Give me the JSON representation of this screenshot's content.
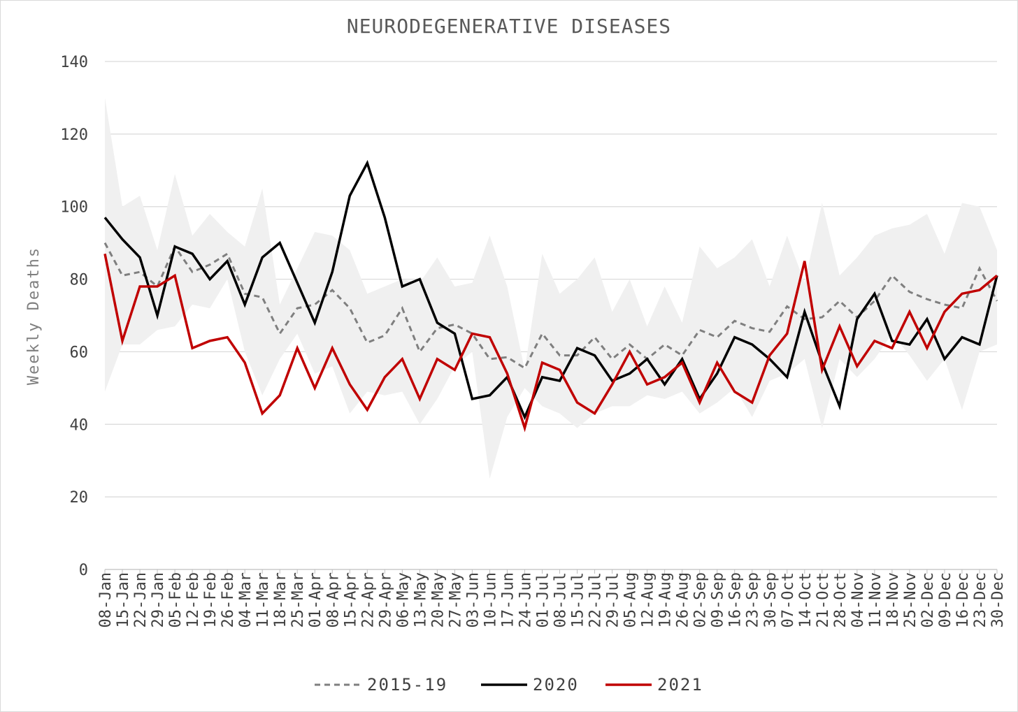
{
  "chart_data": {
    "type": "line",
    "title": "NEURODEGENERATIVE DISEASES",
    "ylabel": "Weekly Deaths",
    "xlabel": "",
    "ylim": [
      0,
      140
    ],
    "yticks": [
      0,
      20,
      40,
      60,
      80,
      100,
      120,
      140
    ],
    "grid": true,
    "legend_position": "bottom",
    "categories": [
      "08-Jan",
      "15-Jan",
      "22-Jan",
      "29-Jan",
      "05-Feb",
      "12-Feb",
      "19-Feb",
      "26-Feb",
      "04-Mar",
      "11-Mar",
      "18-Mar",
      "25-Mar",
      "01-Apr",
      "08-Apr",
      "15-Apr",
      "22-Apr",
      "29-Apr",
      "06-May",
      "13-May",
      "20-May",
      "27-May",
      "03-Jun",
      "10-Jun",
      "17-Jun",
      "24-Jun",
      "01-Jul",
      "08-Jul",
      "15-Jul",
      "22-Jul",
      "29-Jul",
      "05-Aug",
      "12-Aug",
      "19-Aug",
      "26-Aug",
      "02-Sep",
      "09-Sep",
      "16-Sep",
      "23-Sep",
      "30-Sep",
      "07-Oct",
      "14-Oct",
      "21-Oct",
      "28-Oct",
      "04-Nov",
      "11-Nov",
      "18-Nov",
      "25-Nov",
      "02-Dec",
      "09-Dec",
      "16-Dec",
      "23-Dec",
      "30-Dec"
    ],
    "range_band": {
      "color": "#f0f0f0",
      "upper": [
        130,
        100,
        103,
        88,
        109,
        92,
        98,
        93,
        89,
        105,
        73,
        83,
        93,
        92,
        88,
        76,
        78,
        80,
        79,
        86,
        78,
        79,
        92,
        78,
        55,
        87,
        76,
        80,
        86,
        71,
        80,
        67,
        78,
        68,
        89,
        83,
        86,
        91,
        78,
        92,
        79,
        101,
        81,
        86,
        92,
        94,
        95,
        98,
        87,
        101,
        100,
        88
      ],
      "lower": [
        49,
        62,
        62,
        66,
        67,
        73,
        72,
        80,
        60,
        48,
        58,
        65,
        54,
        56,
        43,
        49,
        48,
        49,
        40,
        47,
        56,
        60,
        25,
        42,
        50,
        45,
        43,
        39,
        43,
        45,
        45,
        48,
        47,
        49,
        43,
        46,
        50,
        42,
        52,
        54,
        58,
        39,
        58,
        53,
        58,
        65,
        59,
        52,
        58,
        44,
        60,
        62
      ]
    },
    "series": [
      {
        "name": "2015-19",
        "color": "#7f7f7f",
        "dash": "8,6",
        "width": 3,
        "values": [
          90,
          81,
          82,
          78,
          89,
          82,
          84,
          87,
          76,
          75,
          65,
          72,
          73,
          77,
          72,
          62.5,
          64.5,
          72,
          60,
          66.5,
          67.5,
          65,
          58,
          58.5,
          55.5,
          65,
          59,
          59,
          64,
          58,
          62,
          58,
          62,
          59,
          66,
          64,
          68.5,
          66.5,
          65.5,
          72.5,
          69,
          69.5,
          74,
          69.5,
          74,
          81,
          76.5,
          74.5,
          73,
          72,
          83,
          74
        ]
      },
      {
        "name": "2020",
        "color": "#000000",
        "dash": "",
        "width": 3.5,
        "values": [
          97,
          91,
          86,
          70,
          89,
          87,
          80,
          85,
          73,
          86,
          90,
          79,
          68,
          82,
          103,
          112,
          97,
          78,
          80,
          68,
          65,
          47,
          48,
          53,
          42,
          53,
          52,
          61,
          59,
          52,
          54,
          58,
          51,
          58,
          47,
          54,
          64,
          62,
          58,
          53,
          71,
          57,
          45,
          69,
          76,
          63,
          62,
          69,
          58,
          64,
          62,
          81
        ]
      },
      {
        "name": "2021",
        "color": "#c00000",
        "dash": "",
        "width": 3.5,
        "values": [
          87,
          63,
          78,
          78,
          81,
          61,
          63,
          64,
          57,
          43,
          48,
          61,
          50,
          61,
          51,
          44,
          53,
          58,
          47,
          58,
          55,
          65,
          64,
          54,
          39,
          57,
          55,
          46,
          43,
          51,
          60,
          51,
          53,
          57,
          46,
          57,
          49,
          46,
          59,
          65,
          85,
          55,
          67,
          56,
          63,
          61,
          71,
          61,
          71,
          76,
          77,
          81
        ]
      }
    ]
  }
}
